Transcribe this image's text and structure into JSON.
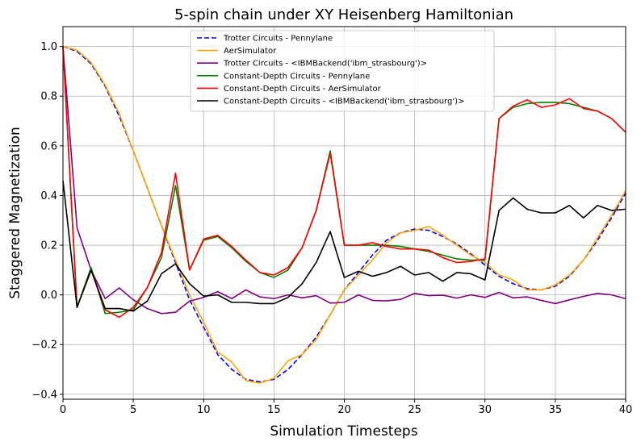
{
  "chart_data": {
    "type": "line",
    "title": "5-spin chain under XY Heisenberg Hamiltonian",
    "xlabel": "Simulation Timesteps",
    "ylabel": "Staggered Magnetization",
    "xlim": [
      0,
      40
    ],
    "ylim": [
      -0.42,
      1.08
    ],
    "xticks": [
      0,
      5,
      10,
      15,
      20,
      25,
      30,
      35,
      40
    ],
    "yticks": [
      -0.4,
      -0.2,
      0.0,
      0.2,
      0.4,
      0.6,
      0.8,
      1.0
    ],
    "xtick_labels": [
      "0",
      "5",
      "10",
      "15",
      "20",
      "25",
      "30",
      "35",
      "40"
    ],
    "ytick_labels": [
      "−0.4",
      "−0.2",
      "0.0",
      "0.2",
      "0.4",
      "0.6",
      "0.8",
      "1.0"
    ],
    "grid": true,
    "legend_position": "top-center",
    "x": [
      0,
      1,
      2,
      3,
      4,
      5,
      6,
      7,
      8,
      9,
      10,
      11,
      12,
      13,
      14,
      15,
      16,
      17,
      18,
      19,
      20,
      21,
      22,
      23,
      24,
      25,
      26,
      27,
      28,
      29,
      30,
      31,
      32,
      33,
      34,
      35,
      36,
      37,
      38,
      39,
      40
    ],
    "series": [
      {
        "name": "Trotter Circuits - Pennylane",
        "color": "#0000ff",
        "dash": "dashed",
        "values": [
          1.0,
          0.98,
          0.93,
          0.84,
          0.72,
          0.58,
          0.43,
          0.28,
          0.13,
          -0.02,
          -0.13,
          -0.24,
          -0.3,
          -0.34,
          -0.35,
          -0.34,
          -0.3,
          -0.24,
          -0.17,
          -0.08,
          0.02,
          0.09,
          0.16,
          0.22,
          0.25,
          0.265,
          0.26,
          0.235,
          0.205,
          0.165,
          0.12,
          0.075,
          0.045,
          0.025,
          0.02,
          0.035,
          0.075,
          0.14,
          0.22,
          0.31,
          0.41
        ]
      },
      {
        "name": "AerSimulator",
        "color": "#ffa500",
        "dash": "solid",
        "values": [
          1.0,
          0.985,
          0.935,
          0.845,
          0.73,
          0.58,
          0.43,
          0.28,
          0.14,
          0.0,
          -0.11,
          -0.23,
          -0.27,
          -0.345,
          -0.355,
          -0.335,
          -0.265,
          -0.24,
          -0.18,
          -0.08,
          0.02,
          0.08,
          0.14,
          0.21,
          0.25,
          0.26,
          0.275,
          0.24,
          0.2,
          0.16,
          0.13,
          0.08,
          0.06,
          0.02,
          0.02,
          0.04,
          0.08,
          0.14,
          0.23,
          0.32,
          0.42
        ]
      },
      {
        "name": "Trotter Circuits - <IBMBackend('ibm_strasbourg')>",
        "color": "#800080",
        "dash": "solid",
        "values": [
          1.0,
          0.27,
          0.1,
          -0.015,
          0.028,
          -0.02,
          -0.055,
          -0.075,
          -0.07,
          -0.025,
          -0.01,
          0.013,
          -0.015,
          0.02,
          -0.008,
          -0.015,
          0.0,
          -0.012,
          -0.003,
          -0.033,
          -0.03,
          0.0,
          -0.022,
          -0.024,
          -0.018,
          0.006,
          -0.003,
          -0.001,
          -0.013,
          0.0,
          -0.01,
          0.01,
          -0.012,
          -0.008,
          -0.022,
          -0.035,
          -0.02,
          -0.006,
          0.006,
          0.0,
          -0.015
        ]
      },
      {
        "name": "Constant-Depth Circuits - Pennylane",
        "color": "#008000",
        "dash": "solid",
        "values": [
          1.0,
          -0.05,
          0.11,
          -0.075,
          -0.07,
          -0.06,
          0.03,
          0.15,
          0.44,
          0.1,
          0.22,
          0.235,
          0.19,
          0.135,
          0.09,
          0.07,
          0.1,
          0.19,
          0.34,
          0.58,
          0.2,
          0.2,
          0.2,
          0.2,
          0.195,
          0.185,
          0.175,
          0.16,
          0.145,
          0.14,
          0.14,
          0.71,
          0.755,
          0.77,
          0.775,
          0.775,
          0.77,
          0.755,
          0.74,
          0.71,
          0.655
        ]
      },
      {
        "name": "Constant-Depth Circuits - AerSimulator",
        "color": "#ff0000",
        "dash": "solid",
        "values": [
          1.0,
          -0.05,
          0.1,
          -0.06,
          -0.09,
          -0.05,
          0.03,
          0.17,
          0.49,
          0.1,
          0.225,
          0.24,
          0.195,
          0.14,
          0.09,
          0.08,
          0.11,
          0.19,
          0.34,
          0.57,
          0.2,
          0.2,
          0.21,
          0.195,
          0.185,
          0.185,
          0.18,
          0.15,
          0.13,
          0.135,
          0.145,
          0.71,
          0.76,
          0.785,
          0.755,
          0.765,
          0.79,
          0.75,
          0.74,
          0.71,
          0.655
        ]
      },
      {
        "name": "Constant-Depth Circuits - <IBMBackend('ibm_strasbourg')>",
        "color": "#000000",
        "dash": "solid",
        "values": [
          0.46,
          -0.05,
          0.1,
          -0.055,
          -0.055,
          -0.065,
          -0.025,
          0.085,
          0.125,
          0.045,
          -0.005,
          0.0,
          -0.03,
          -0.03,
          -0.035,
          -0.035,
          -0.01,
          0.045,
          0.13,
          0.255,
          0.07,
          0.095,
          0.075,
          0.09,
          0.115,
          0.08,
          0.09,
          0.055,
          0.09,
          0.085,
          0.06,
          0.34,
          0.39,
          0.345,
          0.33,
          0.33,
          0.36,
          0.31,
          0.36,
          0.34,
          0.345
        ]
      }
    ]
  },
  "legend_labels": [
    "Trotter Circuits - Pennylane",
    "AerSimulator",
    "Trotter Circuits - <IBMBackend('ibm_strasbourg')>",
    "Constant-Depth Circuits - Pennylane",
    "Constant-Depth Circuits - AerSimulator",
    "Constant-Depth Circuits - <IBMBackend('ibm_strasbourg')>"
  ],
  "colors": {
    "grid": "#b0b0b0",
    "axes": "#000000",
    "background": "#ffffff"
  }
}
